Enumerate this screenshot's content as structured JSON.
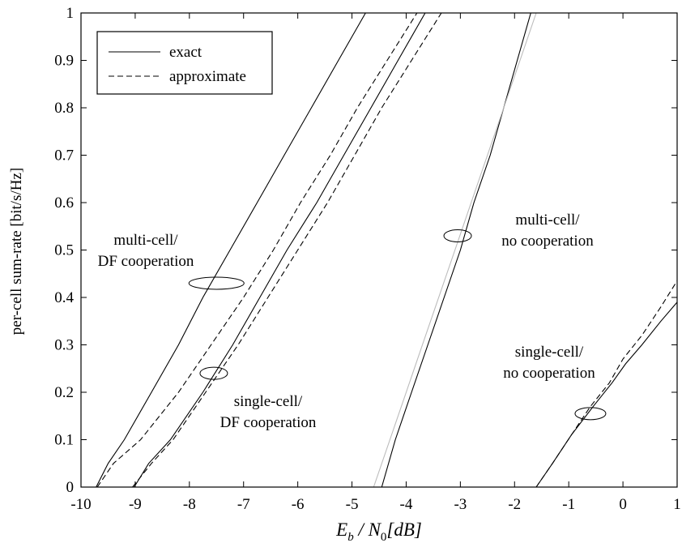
{
  "chart_data": {
    "type": "line",
    "xlabel": {
      "main": "E",
      "sub_b": "b",
      "slash": " / N",
      "sub_0": "0",
      "unit": "[dB]"
    },
    "ylabel": "per-cell sum-rate [bit/s/Hz]",
    "xlim": [
      -10,
      1
    ],
    "ylim": [
      0,
      1
    ],
    "xticks": [
      -10,
      -9,
      -8,
      -7,
      -6,
      -5,
      -4,
      -3,
      -2,
      -1,
      0,
      1
    ],
    "yticks": [
      0,
      0.1,
      0.2,
      0.3,
      0.4,
      0.5,
      0.6,
      0.7,
      0.8,
      0.9,
      1
    ],
    "xtick_labels": [
      "-10",
      "-9",
      "-8",
      "-7",
      "-6",
      "-5",
      "-4",
      "-3",
      "-2",
      "-1",
      "0",
      "1"
    ],
    "ytick_labels": [
      "0",
      "0.1",
      "0.2",
      "0.3",
      "0.4",
      "0.5",
      "0.6",
      "0.7",
      "0.8",
      "0.9",
      "1"
    ],
    "grid": false,
    "legend": {
      "position": "top-left",
      "entries": [
        {
          "label": "exact",
          "style": "solid"
        },
        {
          "label": "approximate",
          "style": "dashed"
        }
      ]
    },
    "series": [
      {
        "group": "multi-cell-df",
        "style": "solid",
        "color": "#000000",
        "points": [
          [
            -9.72,
            0
          ],
          [
            -9.5,
            0.05
          ],
          [
            -9.2,
            0.1
          ],
          [
            -8.7,
            0.2
          ],
          [
            -8.2,
            0.3
          ],
          [
            -7.75,
            0.4
          ],
          [
            -7.25,
            0.5
          ],
          [
            -6.75,
            0.6
          ],
          [
            -6.25,
            0.7
          ],
          [
            -5.75,
            0.8
          ],
          [
            -5.25,
            0.9
          ],
          [
            -4.75,
            1.0
          ]
        ]
      },
      {
        "group": "multi-cell-df",
        "style": "dashed",
        "color": "#000000",
        "points": [
          [
            -9.7,
            0
          ],
          [
            -9.4,
            0.05
          ],
          [
            -8.9,
            0.1
          ],
          [
            -8.2,
            0.2
          ],
          [
            -7.6,
            0.3
          ],
          [
            -7.0,
            0.4
          ],
          [
            -6.45,
            0.5
          ],
          [
            -5.95,
            0.6
          ],
          [
            -5.4,
            0.7
          ],
          [
            -4.9,
            0.8
          ],
          [
            -4.35,
            0.9
          ],
          [
            -3.8,
            1.0
          ]
        ]
      },
      {
        "group": "single-cell-df",
        "style": "solid",
        "color": "#000000",
        "points": [
          [
            -9.02,
            0
          ],
          [
            -8.75,
            0.05
          ],
          [
            -8.35,
            0.1
          ],
          [
            -7.75,
            0.2
          ],
          [
            -7.2,
            0.3
          ],
          [
            -6.7,
            0.4
          ],
          [
            -6.2,
            0.5
          ],
          [
            -5.65,
            0.6
          ],
          [
            -5.15,
            0.7
          ],
          [
            -4.65,
            0.8
          ],
          [
            -4.15,
            0.9
          ],
          [
            -3.65,
            1.0
          ]
        ]
      },
      {
        "group": "single-cell-df",
        "style": "dashed",
        "color": "#000000",
        "points": [
          [
            -9.05,
            0
          ],
          [
            -8.7,
            0.05
          ],
          [
            -8.3,
            0.1
          ],
          [
            -7.7,
            0.2
          ],
          [
            -7.1,
            0.3
          ],
          [
            -6.55,
            0.4
          ],
          [
            -6.0,
            0.5
          ],
          [
            -5.45,
            0.6
          ],
          [
            -4.95,
            0.7
          ],
          [
            -4.45,
            0.8
          ],
          [
            -3.9,
            0.9
          ],
          [
            -3.35,
            1.0
          ]
        ]
      },
      {
        "group": "multi-cell-nocoop",
        "style": "solid",
        "color": "#000000",
        "points": [
          [
            -4.45,
            0
          ],
          [
            -4.2,
            0.1
          ],
          [
            -3.9,
            0.2
          ],
          [
            -3.6,
            0.3
          ],
          [
            -3.3,
            0.4
          ],
          [
            -3.0,
            0.5
          ],
          [
            -2.75,
            0.6
          ],
          [
            -2.45,
            0.7
          ],
          [
            -2.2,
            0.8
          ],
          [
            -1.95,
            0.9
          ],
          [
            -1.7,
            1.0
          ]
        ]
      },
      {
        "group": "multi-cell-nocoop",
        "style": "solid",
        "color": "#bbbbbb",
        "points": [
          [
            -4.6,
            0
          ],
          [
            -4.3,
            0.1
          ],
          [
            -4.0,
            0.2
          ],
          [
            -3.7,
            0.3
          ],
          [
            -3.4,
            0.4
          ],
          [
            -3.1,
            0.5
          ],
          [
            -2.8,
            0.6
          ],
          [
            -2.5,
            0.7
          ],
          [
            -2.2,
            0.8
          ],
          [
            -1.9,
            0.9
          ],
          [
            -1.6,
            1.0
          ]
        ]
      },
      {
        "group": "single-cell-nocoop",
        "style": "solid",
        "color": "#000000",
        "points": [
          [
            -1.6,
            0
          ],
          [
            -1.3,
            0.05
          ],
          [
            -0.95,
            0.11
          ],
          [
            -0.55,
            0.17
          ],
          [
            -0.2,
            0.22
          ],
          [
            0.05,
            0.26
          ],
          [
            0.35,
            0.3
          ],
          [
            0.7,
            0.35
          ],
          [
            1.0,
            0.39
          ]
        ]
      },
      {
        "group": "single-cell-nocoop",
        "style": "dashed",
        "color": "#000000",
        "points": [
          [
            -1.6,
            0
          ],
          [
            -1.3,
            0.05
          ],
          [
            -0.95,
            0.11
          ],
          [
            -0.6,
            0.17
          ],
          [
            -0.25,
            0.22
          ],
          [
            0.0,
            0.27
          ],
          [
            0.35,
            0.32
          ],
          [
            0.7,
            0.38
          ],
          [
            1.0,
            0.435
          ]
        ]
      }
    ],
    "annotations": [
      {
        "lines": [
          "multi-cell/",
          "DF cooperation"
        ],
        "ellipse_center": [
          -7.5,
          0.43
        ]
      },
      {
        "lines": [
          "single-cell/",
          "DF cooperation"
        ],
        "ellipse_center": [
          -7.55,
          0.24
        ]
      },
      {
        "lines": [
          "multi-cell/",
          "no cooperation"
        ],
        "ellipse_center": [
          -3.05,
          0.53
        ]
      },
      {
        "lines": [
          "single-cell/",
          "no cooperation"
        ],
        "ellipse_center": [
          -0.6,
          0.155
        ]
      }
    ]
  }
}
